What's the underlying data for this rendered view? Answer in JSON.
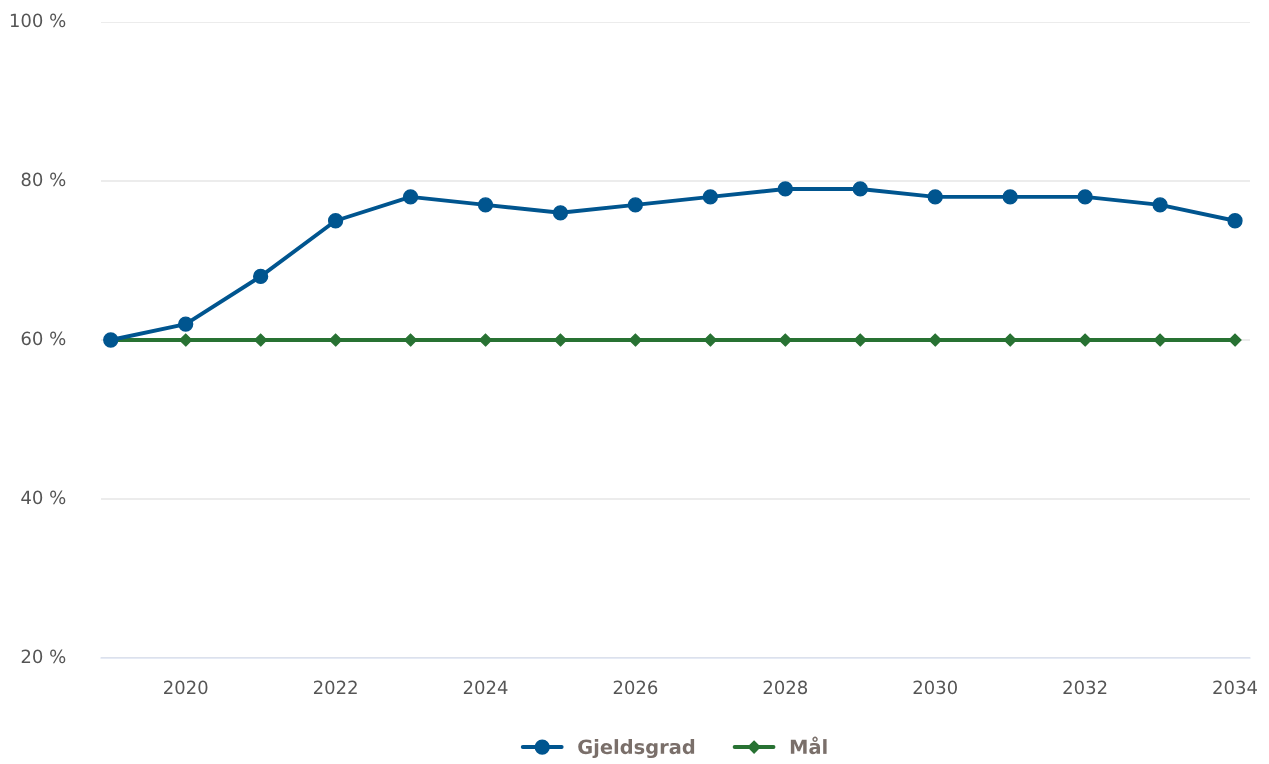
{
  "chart_data": {
    "type": "line",
    "x": [
      2019,
      2020,
      2021,
      2022,
      2023,
      2024,
      2025,
      2026,
      2027,
      2028,
      2029,
      2030,
      2031,
      2032,
      2033,
      2034
    ],
    "series": [
      {
        "name": "Gjeldsgrad",
        "color": "#00558f",
        "marker": "circle",
        "values": [
          60,
          62,
          68,
          75,
          78,
          77,
          76,
          77,
          78,
          79,
          79,
          78,
          78,
          78,
          77,
          75
        ]
      },
      {
        "name": "Mål",
        "color": "#287233",
        "marker": "diamond",
        "values": [
          60,
          60,
          60,
          60,
          60,
          60,
          60,
          60,
          60,
          60,
          60,
          60,
          60,
          60,
          60,
          60
        ]
      }
    ],
    "xlim": [
      2018.87,
      2034.2
    ],
    "xticks": [
      2020,
      2022,
      2024,
      2026,
      2028,
      2030,
      2032,
      2034
    ],
    "ylim": [
      20,
      100
    ],
    "yticks": [
      {
        "value": 20,
        "label": "20 %"
      },
      {
        "value": 40,
        "label": "40 %"
      },
      {
        "value": 60,
        "label": "60 %"
      },
      {
        "value": 80,
        "label": "80 %"
      },
      {
        "value": 100,
        "label": "100 %"
      }
    ],
    "grid": "y",
    "legend": "bottom",
    "line_style": "solid"
  }
}
